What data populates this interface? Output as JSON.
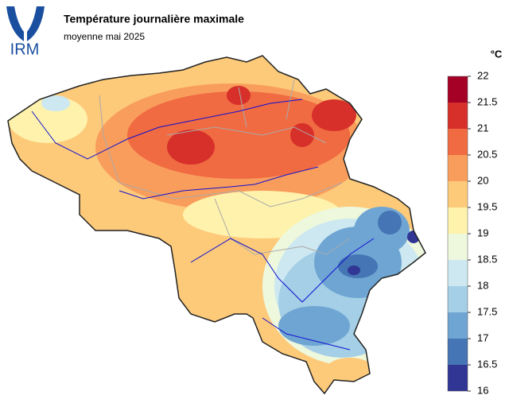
{
  "header": {
    "logo": "IRM",
    "title": "Température journalière maximale",
    "subtitle": "moyenne mai 2025"
  },
  "legend": {
    "unit": "°C",
    "ticks": [
      22,
      21.5,
      21,
      20.5,
      20,
      19.5,
      19,
      18.5,
      18,
      17.5,
      17,
      16.5,
      16
    ],
    "colors": [
      "#a50026",
      "#d7302a",
      "#f06a42",
      "#f99d5c",
      "#fdca7a",
      "#fff2ac",
      "#eef8dc",
      "#cde8f0",
      "#a4cfe6",
      "#6fa5d3",
      "#4575b4",
      "#313695"
    ]
  }
}
